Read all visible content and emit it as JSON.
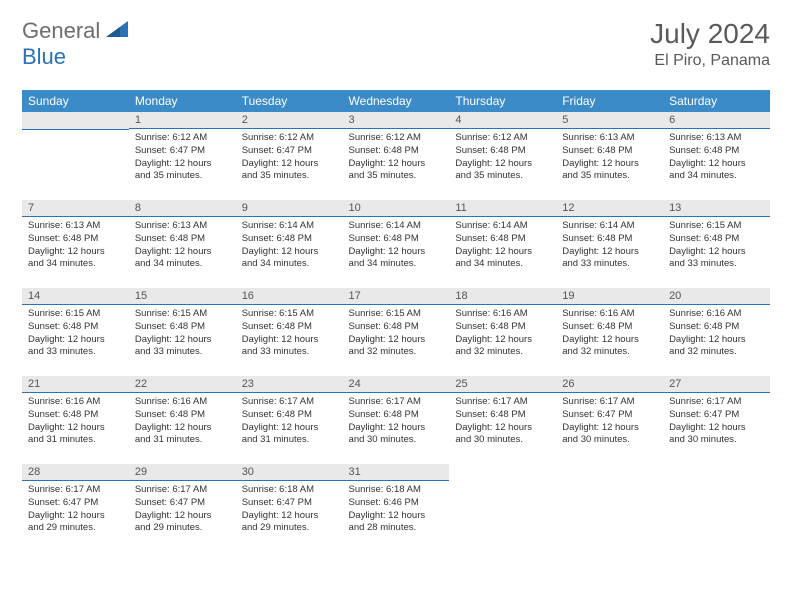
{
  "logo": {
    "text1": "General",
    "text2": "Blue"
  },
  "title": "July 2024",
  "location": "El Piro, Panama",
  "colors": {
    "header_bg": "#3b8bc8",
    "header_text": "#ffffff",
    "daynum_bg": "#e9e9e9",
    "daynum_border": "#2a72b5",
    "body_text": "#333333",
    "logo_gray": "#6d6d6d",
    "logo_blue": "#2a72b5"
  },
  "weekdays": [
    "Sunday",
    "Monday",
    "Tuesday",
    "Wednesday",
    "Thursday",
    "Friday",
    "Saturday"
  ],
  "weeks": [
    [
      null,
      {
        "n": "1",
        "sr": "Sunrise: 6:12 AM",
        "ss": "Sunset: 6:47 PM",
        "dl": "Daylight: 12 hours and 35 minutes."
      },
      {
        "n": "2",
        "sr": "Sunrise: 6:12 AM",
        "ss": "Sunset: 6:47 PM",
        "dl": "Daylight: 12 hours and 35 minutes."
      },
      {
        "n": "3",
        "sr": "Sunrise: 6:12 AM",
        "ss": "Sunset: 6:48 PM",
        "dl": "Daylight: 12 hours and 35 minutes."
      },
      {
        "n": "4",
        "sr": "Sunrise: 6:12 AM",
        "ss": "Sunset: 6:48 PM",
        "dl": "Daylight: 12 hours and 35 minutes."
      },
      {
        "n": "5",
        "sr": "Sunrise: 6:13 AM",
        "ss": "Sunset: 6:48 PM",
        "dl": "Daylight: 12 hours and 35 minutes."
      },
      {
        "n": "6",
        "sr": "Sunrise: 6:13 AM",
        "ss": "Sunset: 6:48 PM",
        "dl": "Daylight: 12 hours and 34 minutes."
      }
    ],
    [
      {
        "n": "7",
        "sr": "Sunrise: 6:13 AM",
        "ss": "Sunset: 6:48 PM",
        "dl": "Daylight: 12 hours and 34 minutes."
      },
      {
        "n": "8",
        "sr": "Sunrise: 6:13 AM",
        "ss": "Sunset: 6:48 PM",
        "dl": "Daylight: 12 hours and 34 minutes."
      },
      {
        "n": "9",
        "sr": "Sunrise: 6:14 AM",
        "ss": "Sunset: 6:48 PM",
        "dl": "Daylight: 12 hours and 34 minutes."
      },
      {
        "n": "10",
        "sr": "Sunrise: 6:14 AM",
        "ss": "Sunset: 6:48 PM",
        "dl": "Daylight: 12 hours and 34 minutes."
      },
      {
        "n": "11",
        "sr": "Sunrise: 6:14 AM",
        "ss": "Sunset: 6:48 PM",
        "dl": "Daylight: 12 hours and 34 minutes."
      },
      {
        "n": "12",
        "sr": "Sunrise: 6:14 AM",
        "ss": "Sunset: 6:48 PM",
        "dl": "Daylight: 12 hours and 33 minutes."
      },
      {
        "n": "13",
        "sr": "Sunrise: 6:15 AM",
        "ss": "Sunset: 6:48 PM",
        "dl": "Daylight: 12 hours and 33 minutes."
      }
    ],
    [
      {
        "n": "14",
        "sr": "Sunrise: 6:15 AM",
        "ss": "Sunset: 6:48 PM",
        "dl": "Daylight: 12 hours and 33 minutes."
      },
      {
        "n": "15",
        "sr": "Sunrise: 6:15 AM",
        "ss": "Sunset: 6:48 PM",
        "dl": "Daylight: 12 hours and 33 minutes."
      },
      {
        "n": "16",
        "sr": "Sunrise: 6:15 AM",
        "ss": "Sunset: 6:48 PM",
        "dl": "Daylight: 12 hours and 33 minutes."
      },
      {
        "n": "17",
        "sr": "Sunrise: 6:15 AM",
        "ss": "Sunset: 6:48 PM",
        "dl": "Daylight: 12 hours and 32 minutes."
      },
      {
        "n": "18",
        "sr": "Sunrise: 6:16 AM",
        "ss": "Sunset: 6:48 PM",
        "dl": "Daylight: 12 hours and 32 minutes."
      },
      {
        "n": "19",
        "sr": "Sunrise: 6:16 AM",
        "ss": "Sunset: 6:48 PM",
        "dl": "Daylight: 12 hours and 32 minutes."
      },
      {
        "n": "20",
        "sr": "Sunrise: 6:16 AM",
        "ss": "Sunset: 6:48 PM",
        "dl": "Daylight: 12 hours and 32 minutes."
      }
    ],
    [
      {
        "n": "21",
        "sr": "Sunrise: 6:16 AM",
        "ss": "Sunset: 6:48 PM",
        "dl": "Daylight: 12 hours and 31 minutes."
      },
      {
        "n": "22",
        "sr": "Sunrise: 6:16 AM",
        "ss": "Sunset: 6:48 PM",
        "dl": "Daylight: 12 hours and 31 minutes."
      },
      {
        "n": "23",
        "sr": "Sunrise: 6:17 AM",
        "ss": "Sunset: 6:48 PM",
        "dl": "Daylight: 12 hours and 31 minutes."
      },
      {
        "n": "24",
        "sr": "Sunrise: 6:17 AM",
        "ss": "Sunset: 6:48 PM",
        "dl": "Daylight: 12 hours and 30 minutes."
      },
      {
        "n": "25",
        "sr": "Sunrise: 6:17 AM",
        "ss": "Sunset: 6:48 PM",
        "dl": "Daylight: 12 hours and 30 minutes."
      },
      {
        "n": "26",
        "sr": "Sunrise: 6:17 AM",
        "ss": "Sunset: 6:47 PM",
        "dl": "Daylight: 12 hours and 30 minutes."
      },
      {
        "n": "27",
        "sr": "Sunrise: 6:17 AM",
        "ss": "Sunset: 6:47 PM",
        "dl": "Daylight: 12 hours and 30 minutes."
      }
    ],
    [
      {
        "n": "28",
        "sr": "Sunrise: 6:17 AM",
        "ss": "Sunset: 6:47 PM",
        "dl": "Daylight: 12 hours and 29 minutes."
      },
      {
        "n": "29",
        "sr": "Sunrise: 6:17 AM",
        "ss": "Sunset: 6:47 PM",
        "dl": "Daylight: 12 hours and 29 minutes."
      },
      {
        "n": "30",
        "sr": "Sunrise: 6:18 AM",
        "ss": "Sunset: 6:47 PM",
        "dl": "Daylight: 12 hours and 29 minutes."
      },
      {
        "n": "31",
        "sr": "Sunrise: 6:18 AM",
        "ss": "Sunset: 6:46 PM",
        "dl": "Daylight: 12 hours and 28 minutes."
      },
      null,
      null,
      null
    ]
  ]
}
